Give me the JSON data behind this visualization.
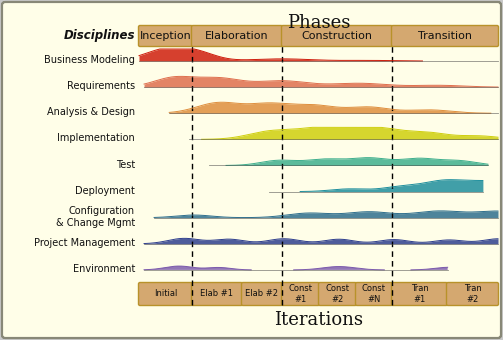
{
  "title": "Phases",
  "xlabel": "Iterations",
  "disciplines_label": "Disciplines",
  "phases": [
    "Inception",
    "Elaboration",
    "Construction",
    "Transition"
  ],
  "iterations": [
    "Initial",
    "Elab #1",
    "Elab #2",
    "Const\n#1",
    "Const\n#2",
    "Const\n#N",
    "Tran\n#1",
    "Tran\n#2"
  ],
  "background_color": "#fffee8",
  "box_fill": "#d4a870",
  "box_edge": "#b8922a",
  "disciplines": [
    "Business Modeling",
    "Requirements",
    "Analysis & Design",
    "Implementation",
    "Test",
    "Deployment",
    "Configuration\n& Change Mgmt",
    "Project Management",
    "Environment"
  ],
  "discipline_colors": [
    "#cc1100",
    "#dd6644",
    "#dd8833",
    "#cccc00",
    "#33aa88",
    "#118899",
    "#226688",
    "#223388",
    "#7755aa"
  ],
  "outer_bg": "#c8c8c8"
}
